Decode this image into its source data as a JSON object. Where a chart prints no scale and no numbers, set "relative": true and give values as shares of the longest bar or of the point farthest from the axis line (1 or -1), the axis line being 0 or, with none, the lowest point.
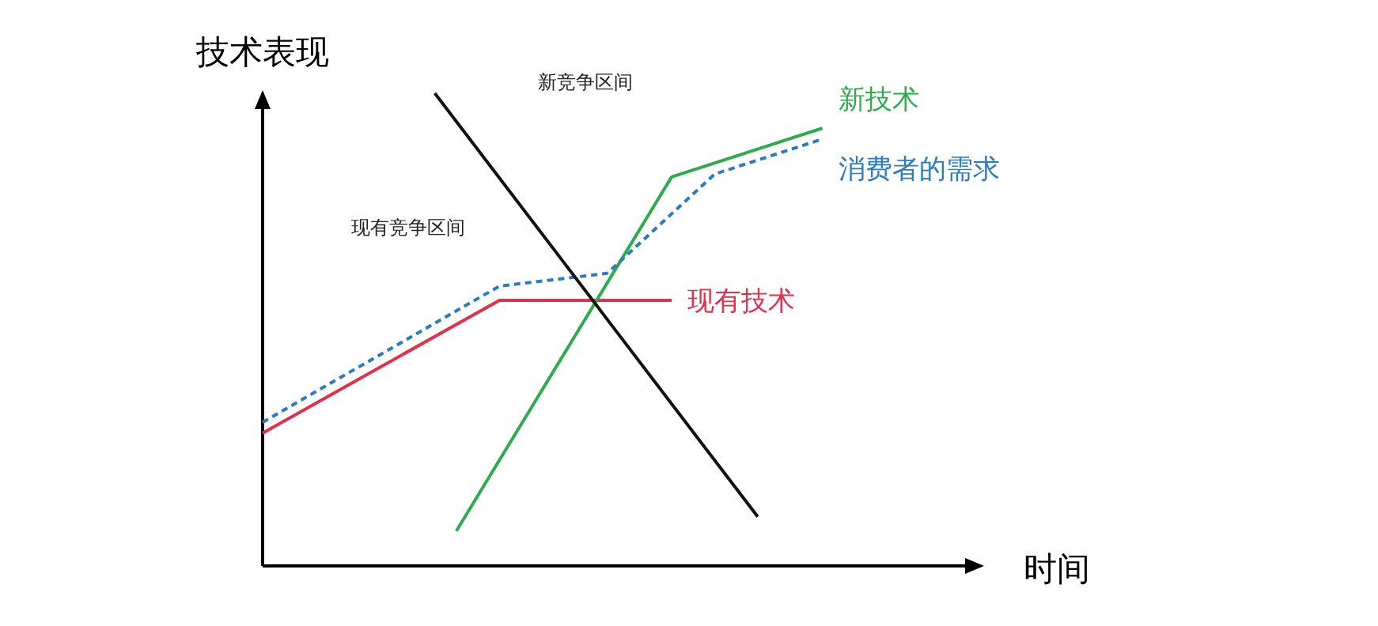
{
  "chart_data": {
    "type": "line",
    "relative": true,
    "xlabel": "时间",
    "ylabel": "技术表现",
    "marker": "none",
    "annotations": [
      "新竞争区间",
      "现有竞争区间"
    ],
    "categories": [
      null,
      null,
      null,
      null,
      null,
      null,
      null,
      null,
      null,
      null,
      null,
      null,
      null,
      null,
      null,
      null,
      null,
      null,
      null,
      null,
      null,
      null,
      null,
      null,
      null,
      null,
      null,
      null,
      null,
      null,
      null,
      null,
      null,
      null
    ],
    "series": [
      {
        "name": "现有技术",
        "color": "#e0304a",
        "line_style": "solid",
        "values": [
          0.281,
          null,
          null,
          null,
          null,
          null,
          null,
          null,
          null,
          null,
          null,
          0.562,
          null,
          null,
          null,
          null,
          null,
          null,
          null,
          0.562,
          null,
          null,
          null,
          null,
          null,
          null,
          null,
          null,
          null,
          null,
          null,
          null,
          null,
          null
        ]
      },
      {
        "name": "新技术",
        "color": "#2eaa4f",
        "line_style": "solid",
        "values": [
          null,
          null,
          null,
          null,
          null,
          null,
          null,
          null,
          null,
          0.074,
          null,
          null,
          null,
          null,
          null,
          null,
          null,
          null,
          null,
          0.823,
          null,
          null,
          null,
          null,
          null,
          null,
          0.926,
          null,
          null,
          null,
          null,
          null,
          null,
          null
        ]
      },
      {
        "name": "消费者的需求",
        "color": "#2a7bbf",
        "line_style": "dashed",
        "values": [
          0.304,
          null,
          null,
          null,
          null,
          null,
          null,
          null,
          null,
          null,
          null,
          0.592,
          null,
          null,
          null,
          null,
          0.619,
          null,
          null,
          null,
          null,
          0.829,
          null,
          null,
          null,
          null,
          0.903,
          null,
          null,
          null,
          null,
          null,
          null,
          null
        ]
      },
      {
        "color": "#111111",
        "line_style": "solid",
        "values": [
          null,
          null,
          null,
          null,
          null,
          null,
          null,
          null,
          1,
          null,
          null,
          null,
          null,
          null,
          null,
          null,
          null,
          null,
          null,
          null,
          null,
          null,
          null,
          0.104,
          null,
          null,
          null,
          null,
          null,
          null,
          null,
          null,
          null,
          null
        ]
      }
    ]
  }
}
